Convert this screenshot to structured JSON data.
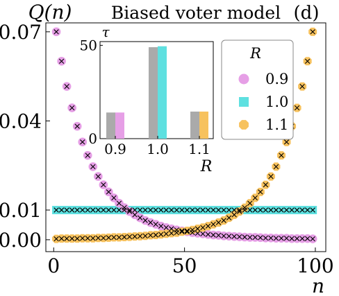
{
  "chart_data": [
    {
      "type": "scatter",
      "title": "Biased voter model",
      "panel_label": "(d)",
      "ylabel": "Q(n)",
      "xlabel": "n",
      "xlim": [
        -3,
        104
      ],
      "ylim": [
        -0.004,
        0.073
      ],
      "xticks": [
        0,
        50,
        100
      ],
      "yticks": [
        0.0,
        0.01,
        0.04,
        0.07
      ],
      "xtick_labels": [
        "0",
        "50",
        "100"
      ],
      "ytick_labels": [
        "0.00",
        "0.01",
        "0.04",
        "0.07"
      ],
      "grid": false,
      "legend_placement": "right, upper middle",
      "legend_title": "R",
      "marker_note": "colored circles/squares: exact values; black crosses: simulation",
      "series": [
        {
          "name": "0.9",
          "color": "#e69fe6",
          "marker": "circle",
          "x": [
            1,
            3,
            5,
            7,
            9,
            11,
            13,
            15,
            17,
            19,
            21,
            23,
            25,
            27,
            29,
            31,
            33,
            35,
            37,
            39,
            41,
            43,
            45,
            47,
            49,
            51,
            53,
            55,
            57,
            59,
            61,
            63,
            65,
            67,
            69,
            71,
            73,
            75,
            77,
            79,
            81,
            83,
            85,
            87,
            89,
            91,
            93,
            95,
            97,
            99
          ],
          "y": [
            0.07,
            0.0601,
            0.0516,
            0.0444,
            0.0382,
            0.0329,
            0.0284,
            0.0246,
            0.0213,
            0.0185,
            0.0161,
            0.0141,
            0.0123,
            0.0108,
            0.0095,
            0.0084,
            0.0074,
            0.0065,
            0.0058,
            0.0052,
            0.0046,
            0.0041,
            0.0037,
            0.0033,
            0.003,
            0.0027,
            0.0024,
            0.0022,
            0.002,
            0.0018,
            0.0016,
            0.0015,
            0.0013,
            0.0012,
            0.0011,
            0.001,
            0.0009,
            0.0008,
            0.0008,
            0.0007,
            0.0006,
            0.0006,
            0.0005,
            0.0005,
            0.0005,
            0.0004,
            0.0004,
            0.0004,
            0.0004,
            0.0003
          ]
        },
        {
          "name": "1.0",
          "color": "#5ee0e0",
          "marker": "square",
          "x": [
            1,
            3,
            5,
            7,
            9,
            11,
            13,
            15,
            17,
            19,
            21,
            23,
            25,
            27,
            29,
            31,
            33,
            35,
            37,
            39,
            41,
            43,
            45,
            47,
            49,
            51,
            53,
            55,
            57,
            59,
            61,
            63,
            65,
            67,
            69,
            71,
            73,
            75,
            77,
            79,
            81,
            83,
            85,
            87,
            89,
            91,
            93,
            95,
            97,
            99
          ],
          "y": [
            0.01,
            0.01,
            0.01,
            0.01,
            0.01,
            0.01,
            0.01,
            0.01,
            0.01,
            0.01,
            0.01,
            0.01,
            0.01,
            0.01,
            0.01,
            0.01,
            0.01,
            0.01,
            0.01,
            0.01,
            0.01,
            0.01,
            0.01,
            0.01,
            0.01,
            0.01,
            0.01,
            0.01,
            0.01,
            0.01,
            0.01,
            0.01,
            0.01,
            0.01,
            0.01,
            0.01,
            0.01,
            0.01,
            0.01,
            0.01,
            0.01,
            0.01,
            0.01,
            0.01,
            0.01,
            0.01,
            0.01,
            0.01,
            0.01,
            0.01
          ]
        },
        {
          "name": "1.1",
          "color": "#f7c25e",
          "marker": "octagon",
          "x": [
            1,
            3,
            5,
            7,
            9,
            11,
            13,
            15,
            17,
            19,
            21,
            23,
            25,
            27,
            29,
            31,
            33,
            35,
            37,
            39,
            41,
            43,
            45,
            47,
            49,
            51,
            53,
            55,
            57,
            59,
            61,
            63,
            65,
            67,
            69,
            71,
            73,
            75,
            77,
            79,
            81,
            83,
            85,
            87,
            89,
            91,
            93,
            95,
            97,
            99
          ],
          "y": [
            0.0003,
            0.0004,
            0.0004,
            0.0004,
            0.0004,
            0.0005,
            0.0005,
            0.0005,
            0.0006,
            0.0006,
            0.0007,
            0.0008,
            0.0008,
            0.0009,
            0.001,
            0.0011,
            0.0012,
            0.0013,
            0.0015,
            0.0016,
            0.0018,
            0.002,
            0.0022,
            0.0024,
            0.0027,
            0.003,
            0.0033,
            0.0037,
            0.0041,
            0.0046,
            0.0052,
            0.0058,
            0.0065,
            0.0074,
            0.0084,
            0.0095,
            0.0108,
            0.0123,
            0.0141,
            0.0161,
            0.0185,
            0.0213,
            0.0246,
            0.0284,
            0.0329,
            0.0382,
            0.0444,
            0.0516,
            0.0601,
            0.07
          ]
        }
      ]
    },
    {
      "type": "bar",
      "inset": true,
      "ylabel": "τ",
      "xlabel": "R",
      "categories": [
        "0.9",
        "1.0",
        "1.1"
      ],
      "ylim": [
        0,
        52
      ],
      "yticks": [
        0,
        50
      ],
      "ytick_labels": [
        "0",
        "50"
      ],
      "series": [
        {
          "name": "",
          "color": "#aaaaaa",
          "values": [
            14,
            49,
            14.5
          ]
        },
        {
          "name": "",
          "color": "#e69fe6",
          "values": [
            14,
            null,
            null
          ]
        },
        {
          "name": "",
          "color": "#5ee0e0",
          "values": [
            null,
            49.5,
            null
          ]
        },
        {
          "name": "",
          "color": "#f7c25e",
          "values": [
            null,
            null,
            14.5
          ]
        }
      ]
    }
  ]
}
